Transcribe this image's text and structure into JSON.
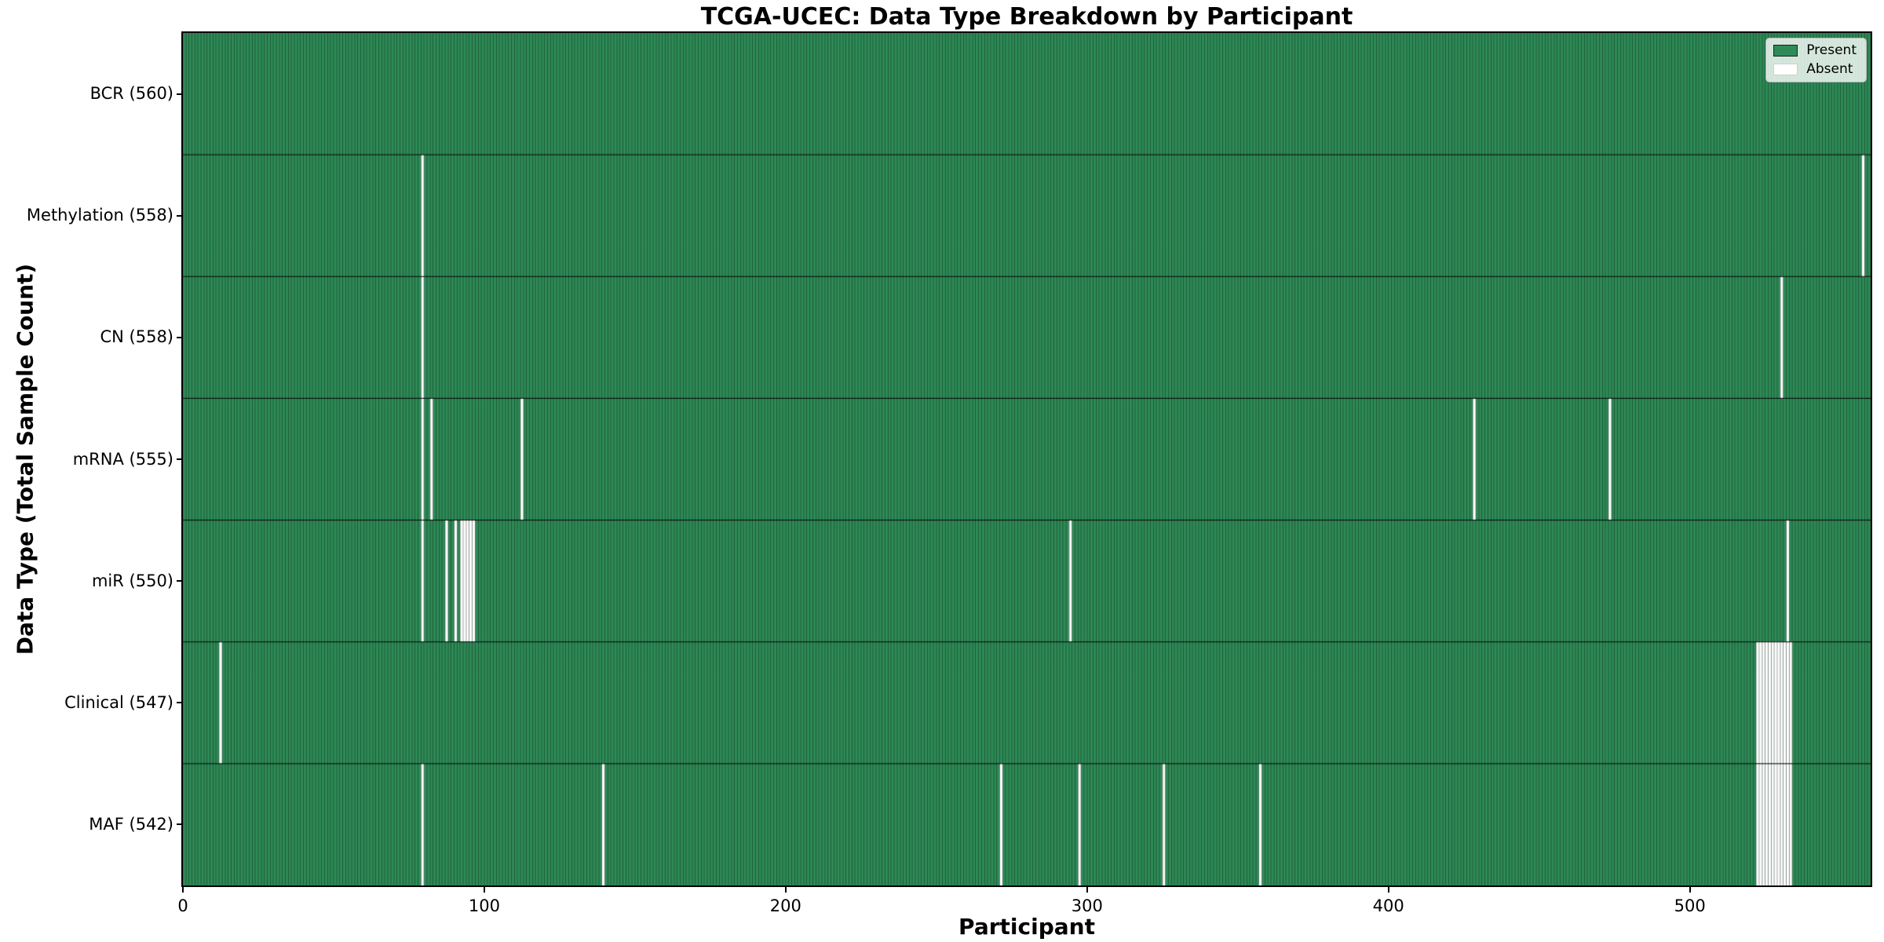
{
  "title": "TCGA-UCEC: Data Type Breakdown by Participant",
  "xlabel": "Participant",
  "ylabel": "Data Type (Total Sample Count)",
  "legend": {
    "present_label": "Present",
    "absent_label": "Absent"
  },
  "colors": {
    "present": "#2e8b57",
    "absent": "#ffffff",
    "bar_edge": "rgba(0,0,0,0.5)",
    "row_divider": "#000000",
    "frame": "#000000",
    "text": "#000000"
  },
  "chart_data": {
    "type": "heatmap",
    "title": "TCGA-UCEC: Data Type Breakdown by Participant",
    "xlabel": "Participant",
    "ylabel": "Data Type (Total Sample Count)",
    "legend_entries": [
      {
        "label": "Present",
        "color": "#2e8b57"
      },
      {
        "label": "Absent",
        "color": "#ffffff"
      }
    ],
    "legend_position": "upper right",
    "n_participants": 560,
    "x_range": [
      0,
      560
    ],
    "x_ticks": [
      0,
      100,
      200,
      300,
      400,
      500
    ],
    "grid": false,
    "rows": [
      {
        "label": "BCR (560)",
        "data_type": "BCR",
        "total_sample_count": 560,
        "absent_participants": []
      },
      {
        "label": "Methylation (558)",
        "data_type": "Methylation",
        "total_sample_count": 558,
        "absent_participants": [
          79,
          557
        ]
      },
      {
        "label": "CN (558)",
        "data_type": "CN",
        "total_sample_count": 558,
        "absent_participants": [
          79,
          530
        ]
      },
      {
        "label": "mRNA (555)",
        "data_type": "mRNA",
        "total_sample_count": 555,
        "absent_participants": [
          79,
          82,
          112,
          428,
          473
        ]
      },
      {
        "label": "miR (550)",
        "data_type": "miR",
        "total_sample_count": 550,
        "absent_participants": [
          79,
          87,
          90,
          92,
          93,
          94,
          95,
          96,
          294,
          532
        ]
      },
      {
        "label": "Clinical (547)",
        "data_type": "Clinical",
        "total_sample_count": 547,
        "absent_participants": [
          12,
          522,
          523,
          524,
          525,
          526,
          527,
          528,
          529,
          530,
          531,
          532,
          533
        ]
      },
      {
        "label": "MAF (542)",
        "data_type": "MAF",
        "total_sample_count": 542,
        "absent_participants": [
          79,
          139,
          271,
          297,
          325,
          357,
          522,
          523,
          524,
          525,
          526,
          527,
          528,
          529,
          530,
          531,
          532,
          533
        ]
      }
    ]
  }
}
